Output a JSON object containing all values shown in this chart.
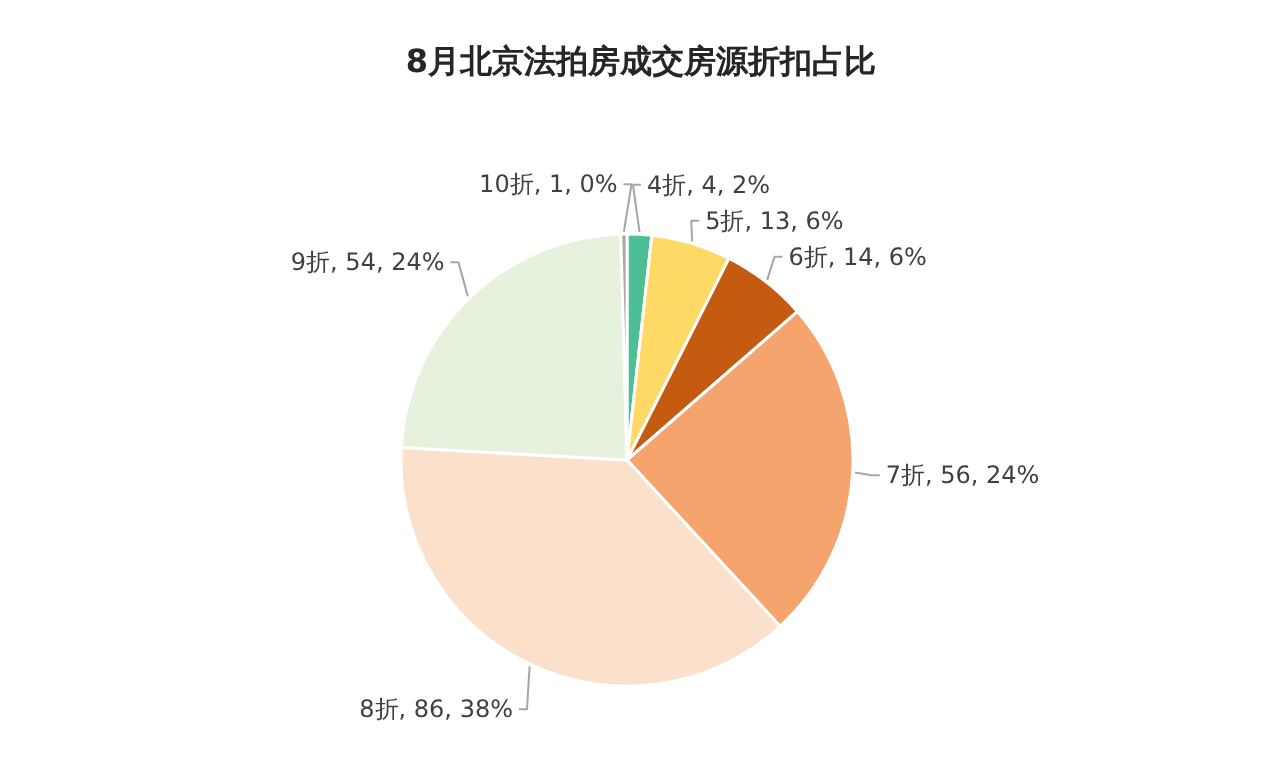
{
  "chart_data": {
    "type": "pie",
    "title": "8月北京法拍房成交房源折扣占比",
    "categories": [
      "4折",
      "5折",
      "6折",
      "7折",
      "8折",
      "9折",
      "10折"
    ],
    "values": [
      4,
      13,
      14,
      56,
      86,
      54,
      1
    ],
    "colors": [
      "#4dbf94",
      "#ffd966",
      "#c55a11",
      "#f4a46c",
      "#fbe1cc",
      "#e6f2de",
      "#a5a5a5"
    ],
    "value_labels": [
      "4, 2%",
      "13, 6%",
      "14, 6%",
      "56, 24%",
      "86, 38%",
      "54, 24%",
      "1, 0%"
    ]
  }
}
